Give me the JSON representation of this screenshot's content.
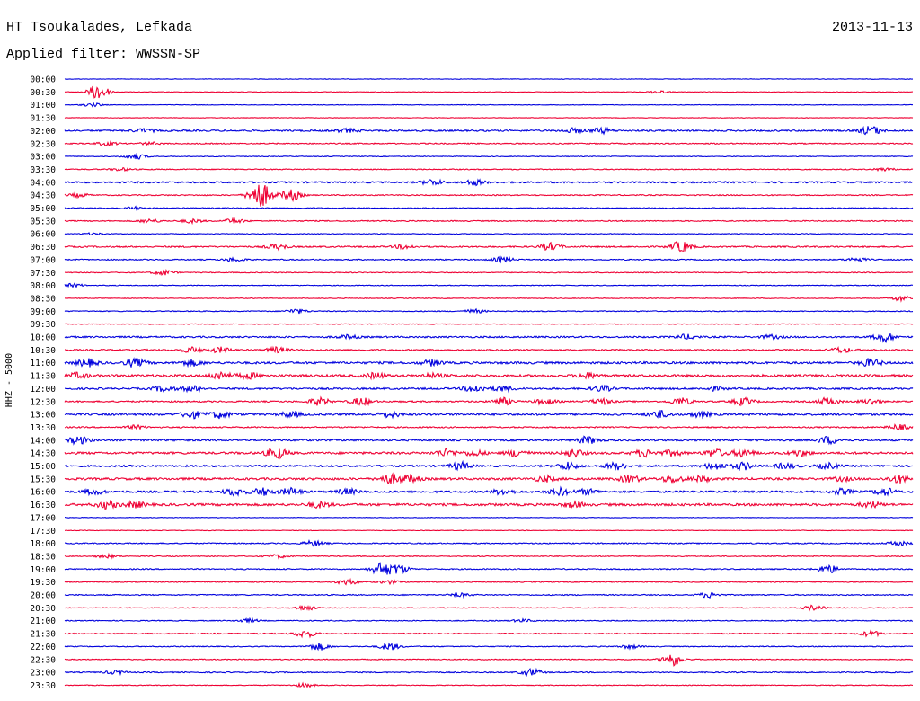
{
  "header": {
    "station": "HT Tsoukalades, Lefkada",
    "date": "2013-11-13",
    "filter_label": "Applied filter:",
    "filter_name": "WWSSN-SP"
  },
  "colors": {
    "trace_even": "#0000dd",
    "trace_odd": "#ee0033",
    "background": "#ffffff",
    "text": "#000000"
  },
  "chart_data": {
    "type": "helicorder",
    "title": "HT Tsoukalades, Lefkada",
    "ylabel": "HHZ - 5000",
    "grid": false,
    "rows": [
      "00:00",
      "00:30",
      "01:00",
      "01:30",
      "02:00",
      "02:30",
      "03:00",
      "03:30",
      "04:00",
      "04:30",
      "05:00",
      "05:30",
      "06:00",
      "06:30",
      "07:00",
      "07:30",
      "08:00",
      "08:30",
      "09:00",
      "09:30",
      "10:00",
      "10:30",
      "11:00",
      "11:30",
      "12:00",
      "12:30",
      "13:00",
      "13:30",
      "14:00",
      "14:30",
      "15:00",
      "15:30",
      "16:00",
      "16:30",
      "17:00",
      "17:30",
      "18:00",
      "18:30",
      "19:00",
      "19:30",
      "20:00",
      "20:30",
      "21:00",
      "21:30",
      "22:00",
      "22:30",
      "23:00",
      "23:30"
    ],
    "row_duration_minutes": 30,
    "background_noise": [
      0.3,
      0.3,
      0.3,
      0.3,
      0.9,
      0.6,
      0.4,
      0.5,
      0.9,
      0.6,
      0.5,
      0.6,
      0.4,
      0.8,
      0.6,
      0.5,
      0.4,
      0.4,
      0.5,
      0.4,
      0.9,
      0.8,
      1.2,
      1.3,
      1.0,
      0.8,
      1.1,
      0.7,
      1.0,
      1.2,
      1.0,
      1.2,
      1.1,
      1.3,
      0.3,
      0.3,
      0.6,
      0.5,
      0.6,
      0.5,
      0.6,
      0.4,
      0.5,
      0.6,
      0.5,
      0.5,
      0.6,
      0.4
    ],
    "events": [
      [
        [
          0,
          0
        ]
      ],
      [
        [
          1.2,
          9
        ],
        [
          21,
          1.5
        ]
      ],
      [
        [
          1.0,
          2
        ]
      ],
      [],
      [
        [
          2.8,
          2
        ],
        [
          10,
          2
        ],
        [
          19,
          3
        ],
        [
          28.5,
          5
        ],
        [
          18,
          2.5
        ]
      ],
      [
        [
          1.5,
          2
        ],
        [
          3,
          1.5
        ]
      ],
      [
        [
          2.5,
          3
        ]
      ],
      [
        [
          2,
          1.5
        ],
        [
          29,
          1.5
        ]
      ],
      [
        [
          13,
          3
        ],
        [
          14.5,
          3
        ]
      ],
      [
        [
          0.5,
          2
        ],
        [
          7,
          8
        ],
        [
          6.8,
          7.5
        ],
        [
          8,
          6
        ]
      ],
      [
        [
          2.5,
          1.5
        ]
      ],
      [
        [
          3,
          2
        ],
        [
          4.5,
          2
        ],
        [
          6,
          2.5
        ]
      ],
      [
        [
          1,
          1
        ]
      ],
      [
        [
          7.5,
          3
        ],
        [
          12,
          2
        ],
        [
          17.2,
          4
        ],
        [
          21.8,
          6
        ]
      ],
      [
        [
          6,
          2
        ],
        [
          15.5,
          3
        ],
        [
          28,
          2
        ]
      ],
      [
        [
          3.5,
          3
        ]
      ],
      [
        [
          0.3,
          2
        ]
      ],
      [
        [
          29.6,
          3
        ]
      ],
      [
        [
          8.2,
          2.5
        ],
        [
          14.5,
          2
        ]
      ],
      [],
      [
        [
          10,
          2
        ],
        [
          22,
          2.5
        ],
        [
          25,
          2
        ],
        [
          29,
          5
        ]
      ],
      [
        [
          4.5,
          3
        ],
        [
          5.5,
          3
        ],
        [
          7.5,
          3
        ],
        [
          27.5,
          3
        ]
      ],
      [
        [
          0.8,
          4
        ],
        [
          2.5,
          4
        ],
        [
          4.5,
          3
        ],
        [
          13,
          3
        ],
        [
          28.5,
          4
        ]
      ],
      [
        [
          0.5,
          3
        ],
        [
          5.5,
          4
        ],
        [
          6.5,
          3
        ],
        [
          11,
          3
        ],
        [
          13,
          2
        ],
        [
          18.5,
          3
        ]
      ],
      [
        [
          3.5,
          3
        ],
        [
          4.5,
          3
        ],
        [
          14.5,
          4
        ],
        [
          15.5,
          3
        ],
        [
          19,
          3
        ],
        [
          23,
          2
        ]
      ],
      [
        [
          9,
          4
        ],
        [
          10.5,
          4
        ],
        [
          15.5,
          4
        ],
        [
          17,
          3
        ],
        [
          19,
          3
        ],
        [
          21.8,
          4
        ],
        [
          24,
          4
        ],
        [
          27,
          4
        ],
        [
          28.5,
          3
        ]
      ],
      [
        [
          4.5,
          4
        ],
        [
          5.5,
          4
        ],
        [
          8,
          3
        ],
        [
          11.5,
          3
        ],
        [
          21,
          4
        ],
        [
          22.5,
          3
        ]
      ],
      [
        [
          2.5,
          2
        ],
        [
          29.5,
          3
        ]
      ],
      [
        [
          0.5,
          4
        ],
        [
          18.5,
          4
        ],
        [
          27,
          4
        ]
      ],
      [
        [
          7.5,
          6
        ],
        [
          13.5,
          4
        ],
        [
          14.5,
          3
        ],
        [
          16,
          4
        ],
        [
          18,
          4
        ],
        [
          20.5,
          4
        ],
        [
          21.5,
          3
        ],
        [
          23,
          4
        ],
        [
          24,
          4
        ],
        [
          26,
          3
        ]
      ],
      [
        [
          14,
          4
        ],
        [
          17.8,
          4
        ],
        [
          19.5,
          4
        ],
        [
          23,
          4
        ],
        [
          24,
          4
        ],
        [
          25.5,
          3
        ],
        [
          27,
          3
        ]
      ],
      [
        [
          11.5,
          5
        ],
        [
          12.2,
          4
        ],
        [
          17,
          3
        ],
        [
          20,
          4
        ],
        [
          21.5,
          4
        ],
        [
          22.5,
          3
        ],
        [
          27.5,
          2
        ],
        [
          29.5,
          4
        ]
      ],
      [
        [
          1,
          3
        ],
        [
          6,
          4
        ],
        [
          7,
          4
        ],
        [
          8,
          4
        ],
        [
          10,
          3
        ],
        [
          15.5,
          3
        ],
        [
          17.5,
          4
        ],
        [
          18.5,
          3
        ],
        [
          27.5,
          3
        ],
        [
          29,
          4
        ]
      ],
      [
        [
          1.5,
          4
        ],
        [
          2.5,
          3
        ],
        [
          9,
          3
        ],
        [
          18,
          3
        ],
        [
          28.5,
          3
        ]
      ],
      [],
      [],
      [
        [
          8.8,
          3
        ],
        [
          29.5,
          2.5
        ]
      ],
      [
        [
          1.5,
          2
        ],
        [
          7.5,
          2
        ]
      ],
      [
        [
          11.2,
          7
        ],
        [
          11.8,
          5
        ],
        [
          27,
          4.5
        ]
      ],
      [
        [
          10,
          3
        ],
        [
          11.5,
          2
        ]
      ],
      [
        [
          14,
          2
        ],
        [
          22.8,
          3
        ]
      ],
      [
        [
          8.5,
          3
        ],
        [
          26.5,
          3
        ]
      ],
      [
        [
          6.5,
          2
        ],
        [
          16.2,
          1.5
        ]
      ],
      [
        [
          8.5,
          4
        ],
        [
          28.5,
          3
        ]
      ],
      [
        [
          9,
          4
        ],
        [
          11.5,
          4
        ],
        [
          20,
          2
        ]
      ],
      [
        [
          21.5,
          7
        ]
      ],
      [
        [
          1.8,
          2
        ],
        [
          16.5,
          4
        ]
      ],
      [
        [
          8.5,
          2
        ]
      ]
    ]
  }
}
